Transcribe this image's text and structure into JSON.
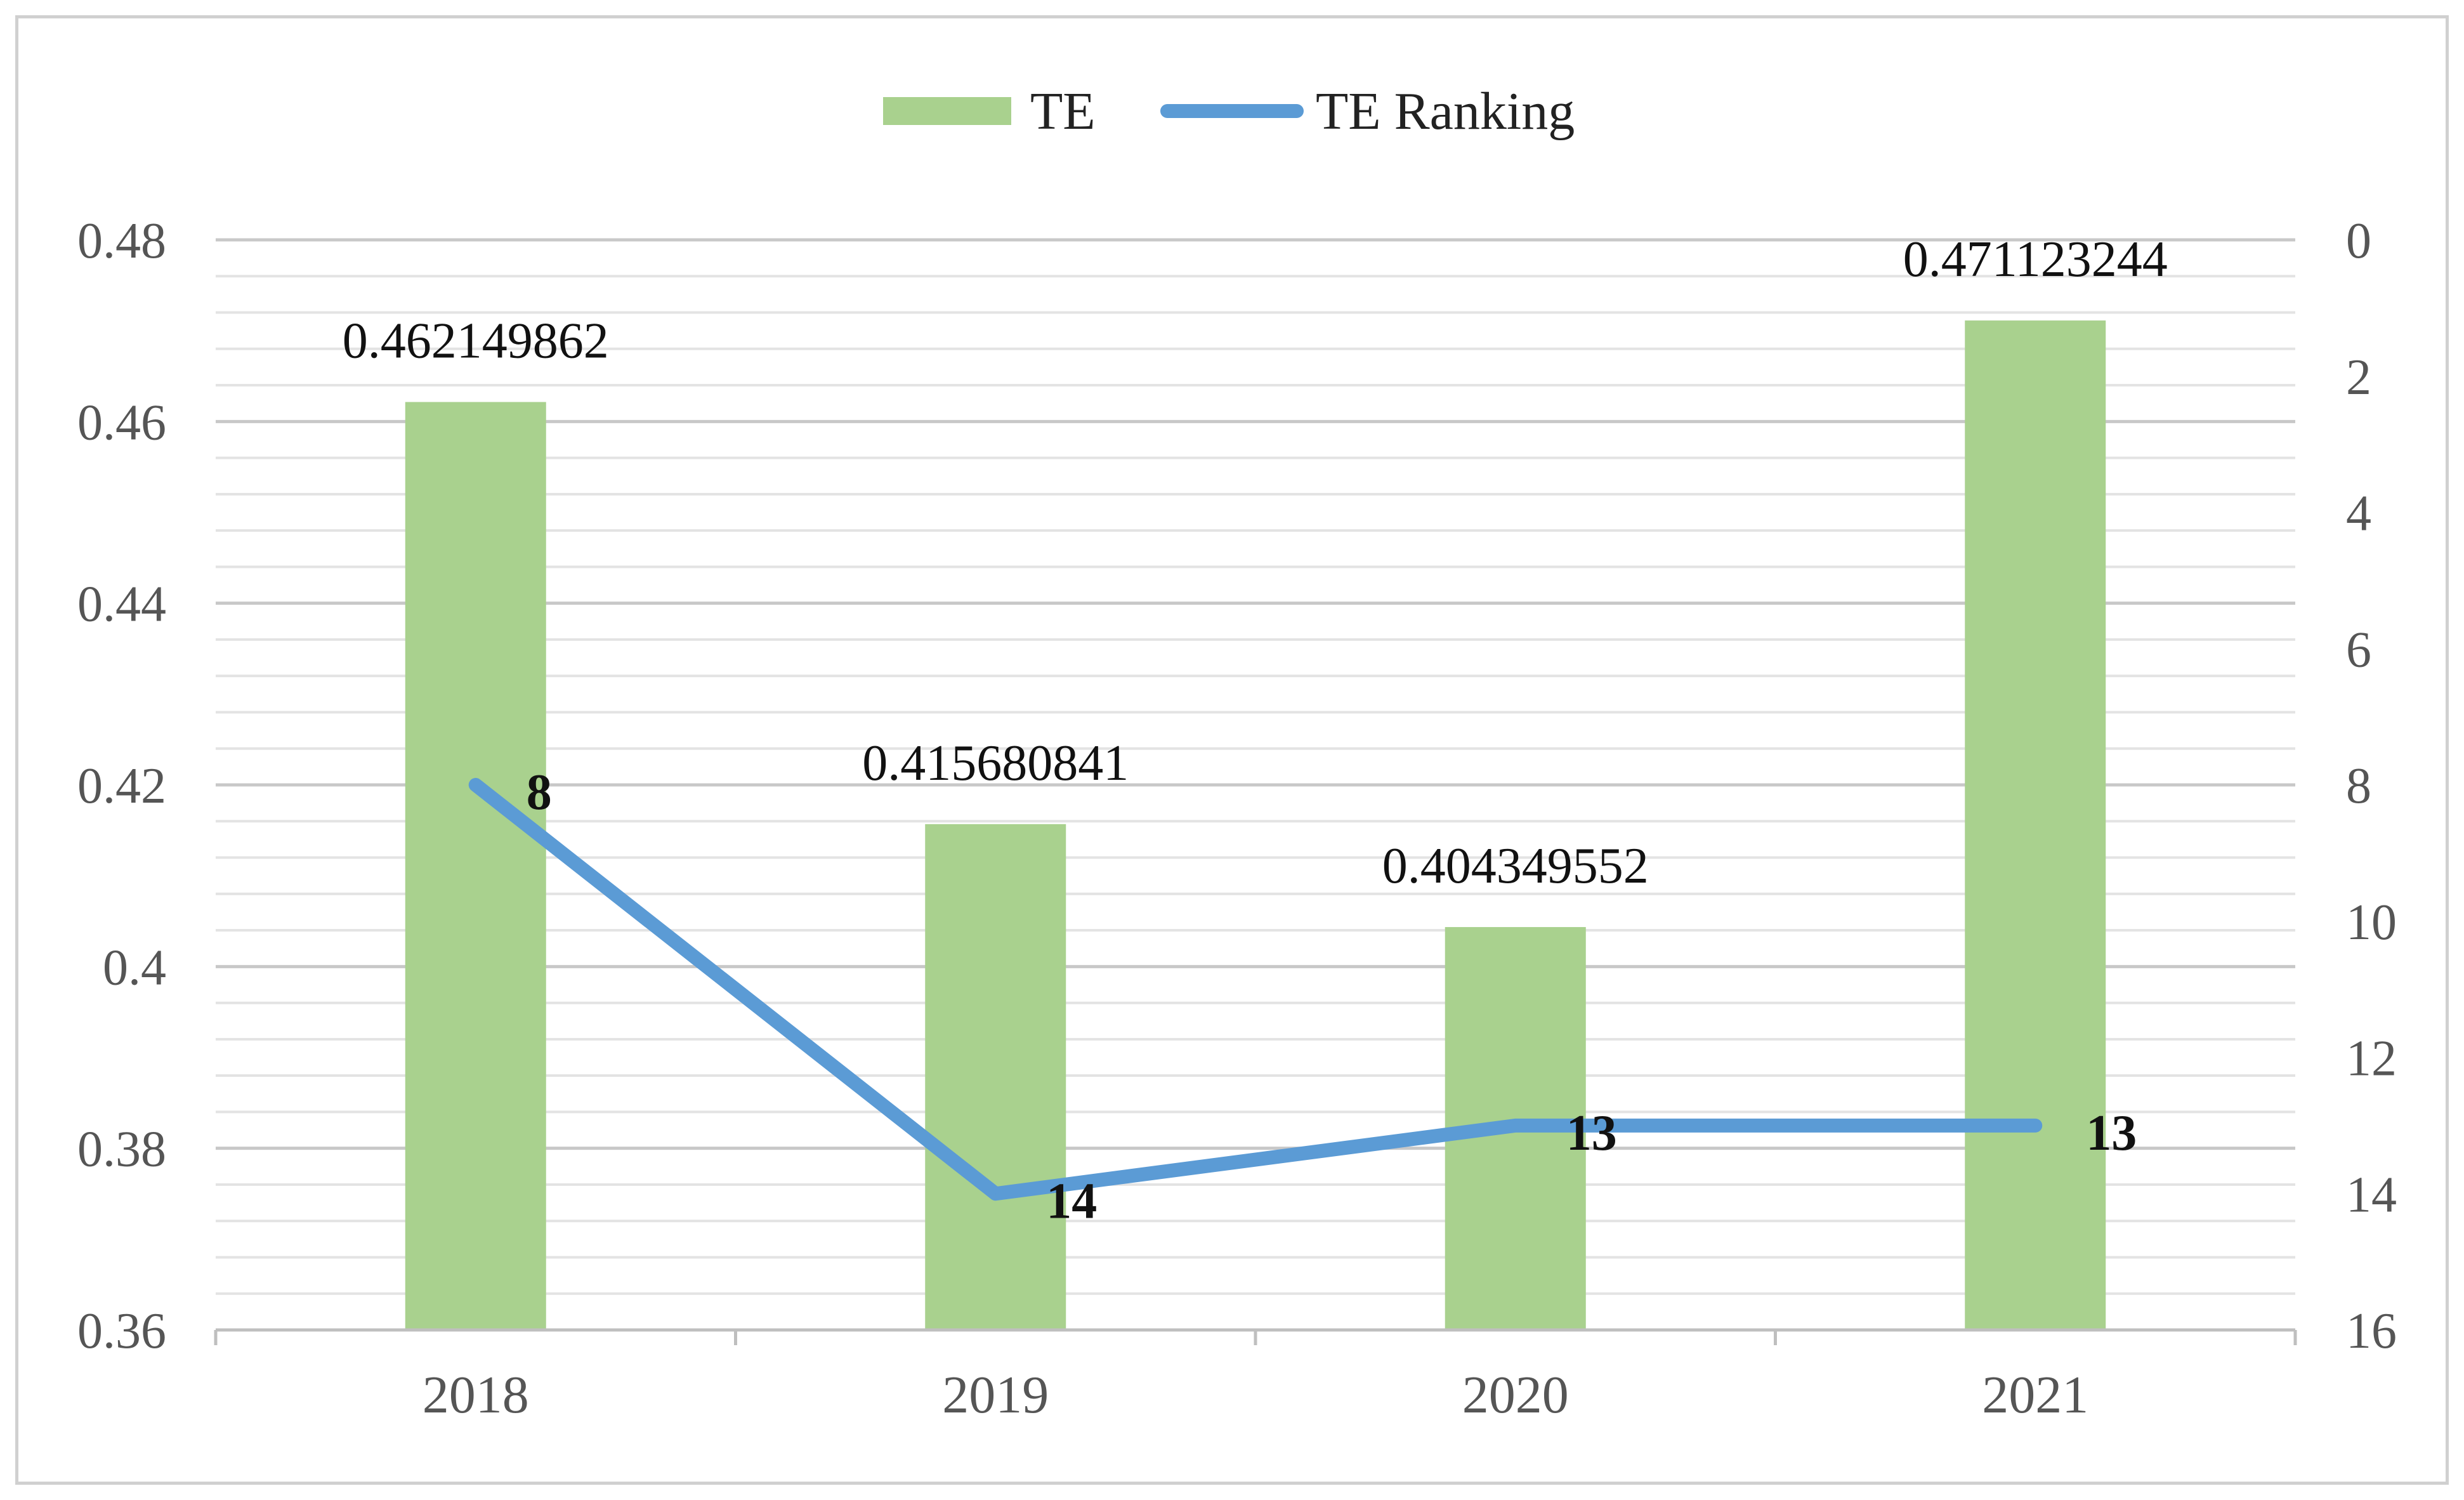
{
  "chart_data": {
    "type": "bar+line",
    "title": "",
    "categories": [
      "2018",
      "2019",
      "2020",
      "2021"
    ],
    "series": [
      {
        "name": "TE",
        "type": "bar",
        "axis": "left",
        "color": "#a9d18e",
        "values": [
          0.462149862,
          0.415680841,
          0.404349552,
          0.471123244
        ],
        "labels": [
          "0.462149862",
          "0.415680841",
          "0.404349552",
          "0.471123244"
        ]
      },
      {
        "name": "TE Ranking",
        "type": "line",
        "axis": "right",
        "color": "#5b9bd5",
        "values": [
          8,
          14,
          13,
          13
        ],
        "labels": [
          "8",
          "14",
          "13",
          "13"
        ]
      }
    ],
    "y_left": {
      "min": 0.36,
      "max": 0.48,
      "ticks": [
        0.36,
        0.38,
        0.4,
        0.42,
        0.44,
        0.46,
        0.48
      ],
      "tick_labels": [
        "0.36",
        "0.38",
        "0.4",
        "0.42",
        "0.44",
        "0.46",
        "0.48"
      ]
    },
    "y_right": {
      "min": 0,
      "max": 16,
      "reversed": true,
      "ticks": [
        0,
        2,
        4,
        6,
        8,
        10,
        12,
        14,
        16
      ],
      "tick_labels": [
        "0",
        "2",
        "4",
        "6",
        "8",
        "10",
        "12",
        "14",
        "16"
      ]
    },
    "grid": true,
    "legend": {
      "position": "top-center",
      "entries": [
        "TE",
        "TE Ranking"
      ]
    },
    "xlabel": "",
    "ylabel": "",
    "y2label": ""
  }
}
